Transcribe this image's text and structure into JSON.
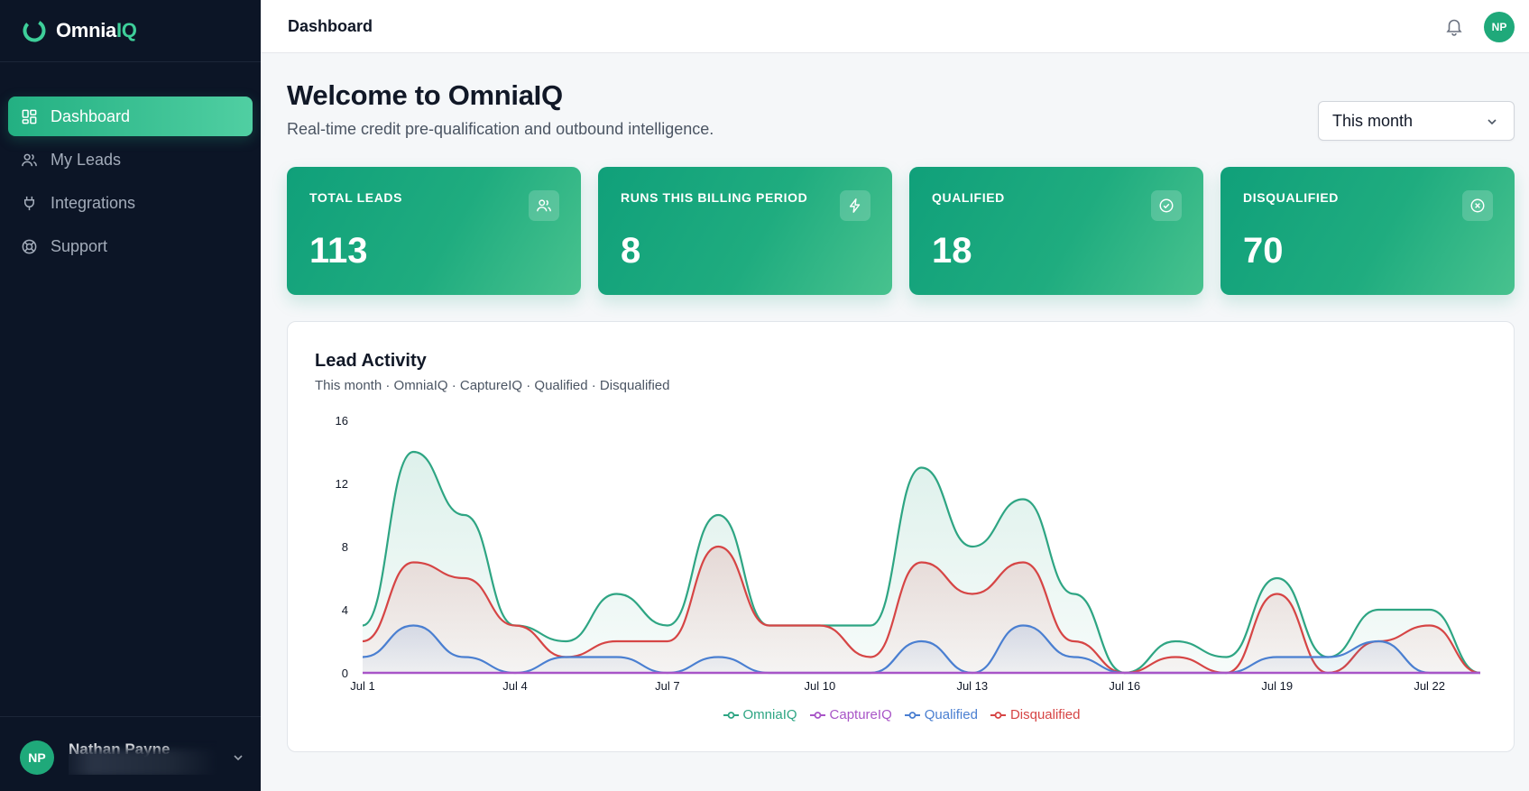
{
  "brand": {
    "name_main": "Omnia",
    "name_accent": "IQ"
  },
  "sidebar": {
    "items": [
      {
        "label": "Dashboard",
        "icon": "dashboard-icon",
        "active": true
      },
      {
        "label": "My Leads",
        "icon": "users-icon",
        "active": false
      },
      {
        "label": "Integrations",
        "icon": "plug-icon",
        "active": false
      },
      {
        "label": "Support",
        "icon": "lifebuoy-icon",
        "active": false
      }
    ],
    "user": {
      "initials": "NP",
      "name": "Nathan Payne"
    }
  },
  "topbar": {
    "title": "Dashboard",
    "avatar_initials": "NP"
  },
  "main": {
    "welcome": "Welcome to OmniaIQ",
    "subtitle": "Real-time credit pre-qualification and outbound intelligence.",
    "period_select": "This month"
  },
  "stats": [
    {
      "label": "TOTAL LEADS",
      "value": "113",
      "icon": "users-icon"
    },
    {
      "label": "RUNS THIS BILLING PERIOD",
      "value": "8",
      "icon": "lightning-icon"
    },
    {
      "label": "QUALIFIED",
      "value": "18",
      "icon": "check-circle-icon"
    },
    {
      "label": "DISQUALIFIED",
      "value": "70",
      "icon": "x-circle-icon"
    }
  ],
  "chart": {
    "title": "Lead Activity",
    "subtitle": "This month · OmniaIQ · CaptureIQ · Qualified · Disqualified"
  },
  "colors": {
    "accent": "#1fa97a",
    "sidebar": "#0c1526",
    "omniaiq": "#2ea583",
    "captureiq": "#a855c7",
    "qualified": "#4a7fd1",
    "disqualified": "#d64545"
  },
  "chart_data": {
    "type": "area",
    "x": [
      "Jul 1",
      "Jul 2",
      "Jul 3",
      "Jul 4",
      "Jul 5",
      "Jul 6",
      "Jul 7",
      "Jul 8",
      "Jul 9",
      "Jul 10",
      "Jul 11",
      "Jul 12",
      "Jul 13",
      "Jul 14",
      "Jul 15",
      "Jul 16",
      "Jul 17",
      "Jul 18",
      "Jul 19",
      "Jul 20",
      "Jul 21",
      "Jul 22",
      "Jul 23"
    ],
    "xticks": [
      "Jul 1",
      "Jul 4",
      "Jul 7",
      "Jul 10",
      "Jul 13",
      "Jul 16",
      "Jul 19",
      "Jul 22"
    ],
    "yticks": [
      0,
      4,
      8,
      12,
      16
    ],
    "ylim": [
      0,
      16
    ],
    "legend_position": "bottom",
    "series": [
      {
        "name": "OmniaIQ",
        "color": "#2ea583",
        "values": [
          3,
          14,
          10,
          3,
          2,
          5,
          3,
          10,
          3,
          3,
          3,
          13,
          8,
          11,
          5,
          0,
          2,
          1,
          6,
          1,
          4,
          4,
          0
        ]
      },
      {
        "name": "CaptureIQ",
        "color": "#a855c7",
        "values": [
          0,
          0,
          0,
          0,
          0,
          0,
          0,
          0,
          0,
          0,
          0,
          0,
          0,
          0,
          0,
          0,
          0,
          0,
          0,
          0,
          0,
          0,
          0
        ]
      },
      {
        "name": "Qualified",
        "color": "#4a7fd1",
        "values": [
          1,
          3,
          1,
          0,
          1,
          1,
          0,
          1,
          0,
          0,
          0,
          2,
          0,
          3,
          1,
          0,
          0,
          0,
          1,
          1,
          2,
          0,
          0
        ]
      },
      {
        "name": "Disqualified",
        "color": "#d64545",
        "values": [
          2,
          7,
          6,
          3,
          1,
          2,
          2,
          8,
          3,
          3,
          1,
          7,
          5,
          7,
          2,
          0,
          1,
          0,
          5,
          0,
          2,
          3,
          0
        ]
      }
    ]
  }
}
